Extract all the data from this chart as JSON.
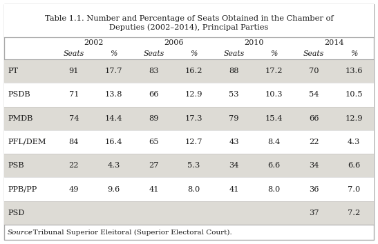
{
  "title_line1": "Table 1.1. Number and Percentage of Seats Obtained in the Chamber of",
  "title_line2": "Deputies (2002–2014), Principal Parties",
  "year_headers": [
    "2002",
    "2006",
    "2010",
    "2014"
  ],
  "col_headers": [
    "Seats",
    "%",
    "Seats",
    "%",
    "Seats",
    "%",
    "Seats",
    "%"
  ],
  "parties": [
    "PT",
    "PSDB",
    "PMDB",
    "PFL/DEM",
    "PSB",
    "PPB/PP",
    "PSD"
  ],
  "data": [
    [
      "91",
      "17.7",
      "83",
      "16.2",
      "88",
      "17.2",
      "70",
      "13.6"
    ],
    [
      "71",
      "13.8",
      "66",
      "12.9",
      "53",
      "10.3",
      "54",
      "10.5"
    ],
    [
      "74",
      "14.4",
      "89",
      "17.3",
      "79",
      "15.4",
      "66",
      "12.9"
    ],
    [
      "84",
      "16.4",
      "65",
      "12.7",
      "43",
      "8.4",
      "22",
      "4.3"
    ],
    [
      "22",
      "4.3",
      "27",
      "5.3",
      "34",
      "6.6",
      "34",
      "6.6"
    ],
    [
      "49",
      "9.6",
      "41",
      "8.0",
      "41",
      "8.0",
      "36",
      "7.0"
    ],
    [
      "",
      "",
      "",
      "",
      "",
      "",
      "37",
      "7.2"
    ]
  ],
  "source_italic": "Source",
  "source_rest": ": Tribunal Superior Eleitoral (Superior Electoral Court).",
  "row_shade": "#dddbd5",
  "border_color": "#aaaaaa",
  "text_color": "#1a1a1a",
  "outer_bg": "#ffffff",
  "title_bg": "#ffffff"
}
